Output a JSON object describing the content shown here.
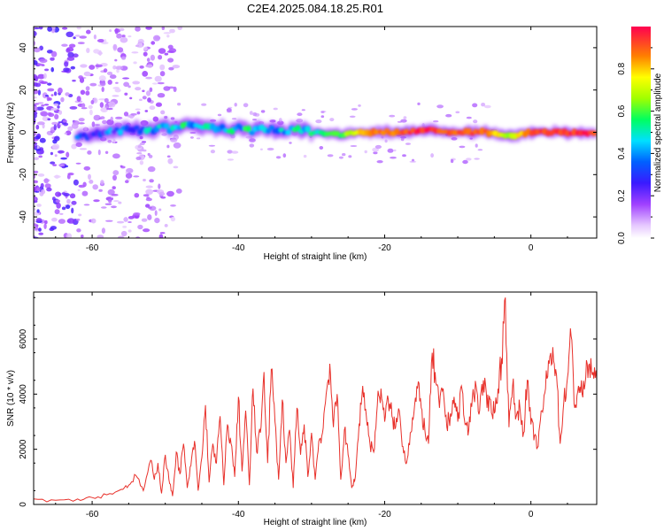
{
  "figure": {
    "title": "C2E4.2025.084.18.25.R01"
  },
  "chart_data": [
    {
      "type": "heatmap",
      "title": "C2E4.2025.084.18.25.R01",
      "xlabel": "Height of straight line (km)",
      "ylabel": "Frequency (Hz)",
      "xlim": [
        -68,
        9
      ],
      "ylim": [
        -50,
        50
      ],
      "xticks": [
        -60,
        -40,
        -20,
        0
      ],
      "yticks": [
        -40,
        -20,
        0,
        20,
        40
      ],
      "ridge": {
        "description": "dominant frequency ridge (peak of normalized spectrum)",
        "x": [
          -62,
          -58,
          -54,
          -50,
          -46,
          -42,
          -38,
          -34,
          -30,
          -26,
          -22,
          -18,
          -14,
          -10,
          -6,
          -3,
          0,
          4,
          8
        ],
        "freq": [
          -2,
          0,
          1,
          2,
          3,
          2,
          1,
          1,
          0,
          -1,
          0,
          0,
          1,
          0,
          0,
          -2,
          0,
          0,
          0
        ],
        "amplitude": [
          0.25,
          0.3,
          0.35,
          0.4,
          0.45,
          0.45,
          0.45,
          0.4,
          0.5,
          0.6,
          0.85,
          0.9,
          0.95,
          0.9,
          0.9,
          0.6,
          0.95,
          0.95,
          0.95
        ]
      },
      "colorbar": {
        "label": "Normalized spectral amplitude",
        "range": [
          0.0,
          1.0
        ],
        "ticks": [
          0.0,
          0.2,
          0.4,
          0.6,
          0.8
        ],
        "tick_labels": [
          "0.0",
          "0.2",
          "0.4",
          "0.6",
          "0.8"
        ]
      }
    },
    {
      "type": "line",
      "xlabel": "Height of straight line (km)",
      "ylabel": "SNR (10 * v/v)",
      "xlim": [
        -68,
        9
      ],
      "ylim": [
        0,
        7700
      ],
      "xticks": [
        -60,
        -40,
        -20,
        0
      ],
      "yticks": [
        0,
        2000,
        4000,
        6000
      ],
      "series": [
        {
          "name": "SNR",
          "color": "#e8302a",
          "x": [
            -68,
            -65,
            -62,
            -60,
            -58,
            -56,
            -55,
            -54,
            -53,
            -52,
            -51.5,
            -51,
            -50.5,
            -50,
            -49.5,
            -49,
            -48.5,
            -48,
            -47.5,
            -47,
            -46.5,
            -46,
            -45.5,
            -45,
            -44.5,
            -44,
            -43.5,
            -43,
            -42.5,
            -42,
            -41.5,
            -41,
            -40.5,
            -40,
            -39.5,
            -39,
            -38.5,
            -38,
            -37.5,
            -37,
            -36.5,
            -36,
            -35.5,
            -35,
            -34.5,
            -34,
            -33.5,
            -33,
            -32.5,
            -32,
            -31.5,
            -31,
            -30.5,
            -30,
            -29.5,
            -29,
            -28.5,
            -28,
            -27.5,
            -27,
            -26.5,
            -26,
            -25.5,
            -25,
            -24.5,
            -24,
            -23.5,
            -23,
            -22.5,
            -22,
            -21.5,
            -21,
            -20.5,
            -20,
            -19.5,
            -19,
            -18.5,
            -18,
            -17.5,
            -17,
            -16.5,
            -16,
            -15.5,
            -15,
            -14.5,
            -14,
            -13.5,
            -13,
            -12.5,
            -12,
            -11.5,
            -11,
            -10.5,
            -10,
            -9.5,
            -9,
            -8.5,
            -8,
            -7.5,
            -7,
            -6.5,
            -6,
            -5.5,
            -5,
            -4.5,
            -4,
            -3.5,
            -3,
            -2.5,
            -2,
            -1.5,
            -1,
            -0.5,
            0,
            0.5,
            1,
            1.5,
            2,
            2.5,
            3,
            3.5,
            4,
            4.5,
            5,
            5.5,
            6,
            6.5,
            7,
            7.5,
            8,
            8.5,
            9
          ],
          "y": [
            200,
            150,
            200,
            250,
            350,
            550,
            700,
            1050,
            500,
            1600,
            900,
            1500,
            400,
            1800,
            900,
            300,
            1900,
            1100,
            2200,
            600,
            1400,
            2300,
            500,
            1700,
            3600,
            800,
            2200,
            1500,
            3200,
            700,
            2900,
            2200,
            1000,
            3900,
            1200,
            3400,
            700,
            4200,
            1900,
            2600,
            4800,
            1500,
            4900,
            3000,
            900,
            3800,
            1500,
            2700,
            600,
            3500,
            1800,
            2900,
            1000,
            2600,
            900,
            2300,
            2600,
            4000,
            5100,
            2800,
            4000,
            900,
            2700,
            1800,
            600,
            1000,
            2900,
            4300,
            3200,
            2200,
            1900,
            3600,
            4200,
            3000,
            3800,
            3200,
            2800,
            3400,
            2100,
            1500,
            2600,
            3300,
            4200,
            3500,
            2700,
            2200,
            5500,
            4400,
            3500,
            4200,
            2800,
            3300,
            3900,
            3000,
            4300,
            2900,
            2700,
            3900,
            4300,
            3400,
            4500,
            3500,
            3800,
            3300,
            4200,
            5300,
            7500,
            2800,
            4300,
            3200,
            3500,
            2600,
            4500,
            2900,
            2500,
            2100,
            3400,
            4200,
            5100,
            5700,
            4700,
            2200,
            3700,
            4600,
            6100,
            3500,
            4300,
            4000,
            4600,
            5100,
            4800,
            4500
          ]
        }
      ]
    }
  ]
}
